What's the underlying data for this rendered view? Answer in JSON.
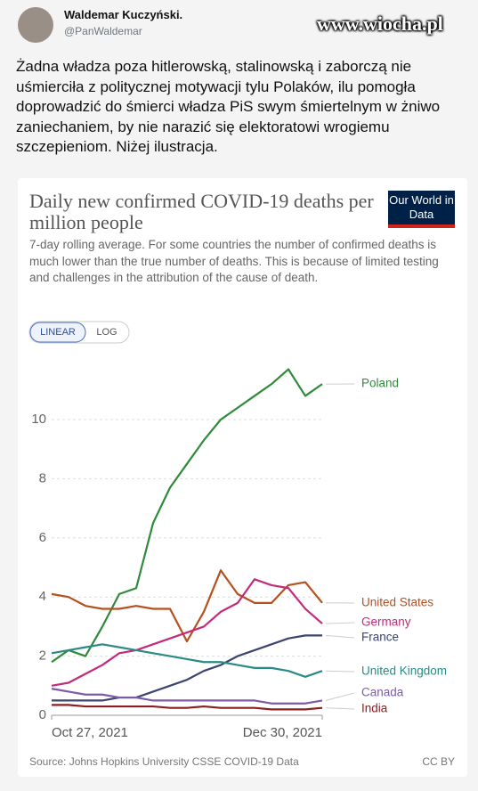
{
  "tweet": {
    "name": "Waldemar Kuczyński.",
    "handle": "@PanWaldemar",
    "watermark": "www.wiocha.pl",
    "text": "Żadna władza poza hitlerowską, stalinowską i zaborczą nie uśmierciła z politycznej motywacji tylu Polaków, ilu pomogła doprowadzić do śmierci władza PiS swym śmiertelnym w żniwo zaniechaniem, by nie narazić się elektoratowi wrogiemu szczepieniom. Niżej ilustracja."
  },
  "chart_data": {
    "type": "line",
    "title": "Daily new confirmed COVID-19 deaths per million people",
    "subtitle": "7-day rolling average. For some countries the number of confirmed deaths is much lower than the true number of deaths. This is because of limited testing and challenges in the attribution of the cause of death.",
    "logo": "Our World in Data",
    "buttons": [
      "LINEAR",
      "LOG"
    ],
    "source": "Source: Johns Hopkins University CSSE COVID-19 Data",
    "license": "CC BY",
    "x": [
      0,
      4,
      8,
      12,
      16,
      20,
      24,
      28,
      32,
      36,
      40,
      44,
      48,
      52,
      56,
      60,
      64
    ],
    "xlim": [
      0,
      64
    ],
    "xticks": [
      {
        "value": 0,
        "label": "Oct 27, 2021"
      },
      {
        "value": 64,
        "label": "Dec 30, 2021"
      }
    ],
    "ylim": [
      0,
      12.5
    ],
    "yticks": [
      0,
      2,
      4,
      6,
      8,
      10
    ],
    "grid": true,
    "series": [
      {
        "name": "Poland",
        "color": "#2f8a3a",
        "values": [
          1.8,
          2.2,
          2.0,
          3.0,
          4.1,
          4.3,
          6.5,
          7.7,
          8.5,
          9.3,
          10.0,
          10.4,
          10.8,
          11.2,
          11.7,
          10.8,
          11.2
        ]
      },
      {
        "name": "United States",
        "color": "#b5501f",
        "values": [
          4.1,
          4.0,
          3.7,
          3.6,
          3.6,
          3.7,
          3.6,
          3.6,
          2.5,
          3.5,
          4.9,
          4.1,
          3.8,
          3.8,
          4.4,
          4.5,
          3.8
        ]
      },
      {
        "name": "Germany",
        "color": "#c42a7a",
        "values": [
          1.0,
          1.1,
          1.4,
          1.7,
          2.1,
          2.2,
          2.4,
          2.6,
          2.8,
          3.0,
          3.5,
          3.8,
          4.6,
          4.4,
          4.3,
          3.6,
          3.1
        ]
      },
      {
        "name": "France",
        "color": "#3c4470",
        "values": [
          0.5,
          0.5,
          0.5,
          0.5,
          0.6,
          0.6,
          0.8,
          1.0,
          1.2,
          1.5,
          1.7,
          2.0,
          2.2,
          2.4,
          2.6,
          2.7,
          2.7
        ]
      },
      {
        "name": "United Kingdom",
        "color": "#2a8a85",
        "values": [
          2.1,
          2.2,
          2.3,
          2.4,
          2.3,
          2.2,
          2.1,
          2.0,
          1.9,
          1.8,
          1.8,
          1.7,
          1.6,
          1.6,
          1.5,
          1.3,
          1.5
        ]
      },
      {
        "name": "Canada",
        "color": "#7d5ba6",
        "values": [
          0.9,
          0.8,
          0.7,
          0.7,
          0.6,
          0.6,
          0.5,
          0.5,
          0.5,
          0.5,
          0.5,
          0.5,
          0.5,
          0.4,
          0.4,
          0.4,
          0.5
        ]
      },
      {
        "name": "India",
        "color": "#8b1f22",
        "values": [
          0.35,
          0.35,
          0.3,
          0.3,
          0.3,
          0.3,
          0.3,
          0.25,
          0.25,
          0.3,
          0.25,
          0.25,
          0.25,
          0.2,
          0.2,
          0.2,
          0.25
        ]
      }
    ]
  }
}
